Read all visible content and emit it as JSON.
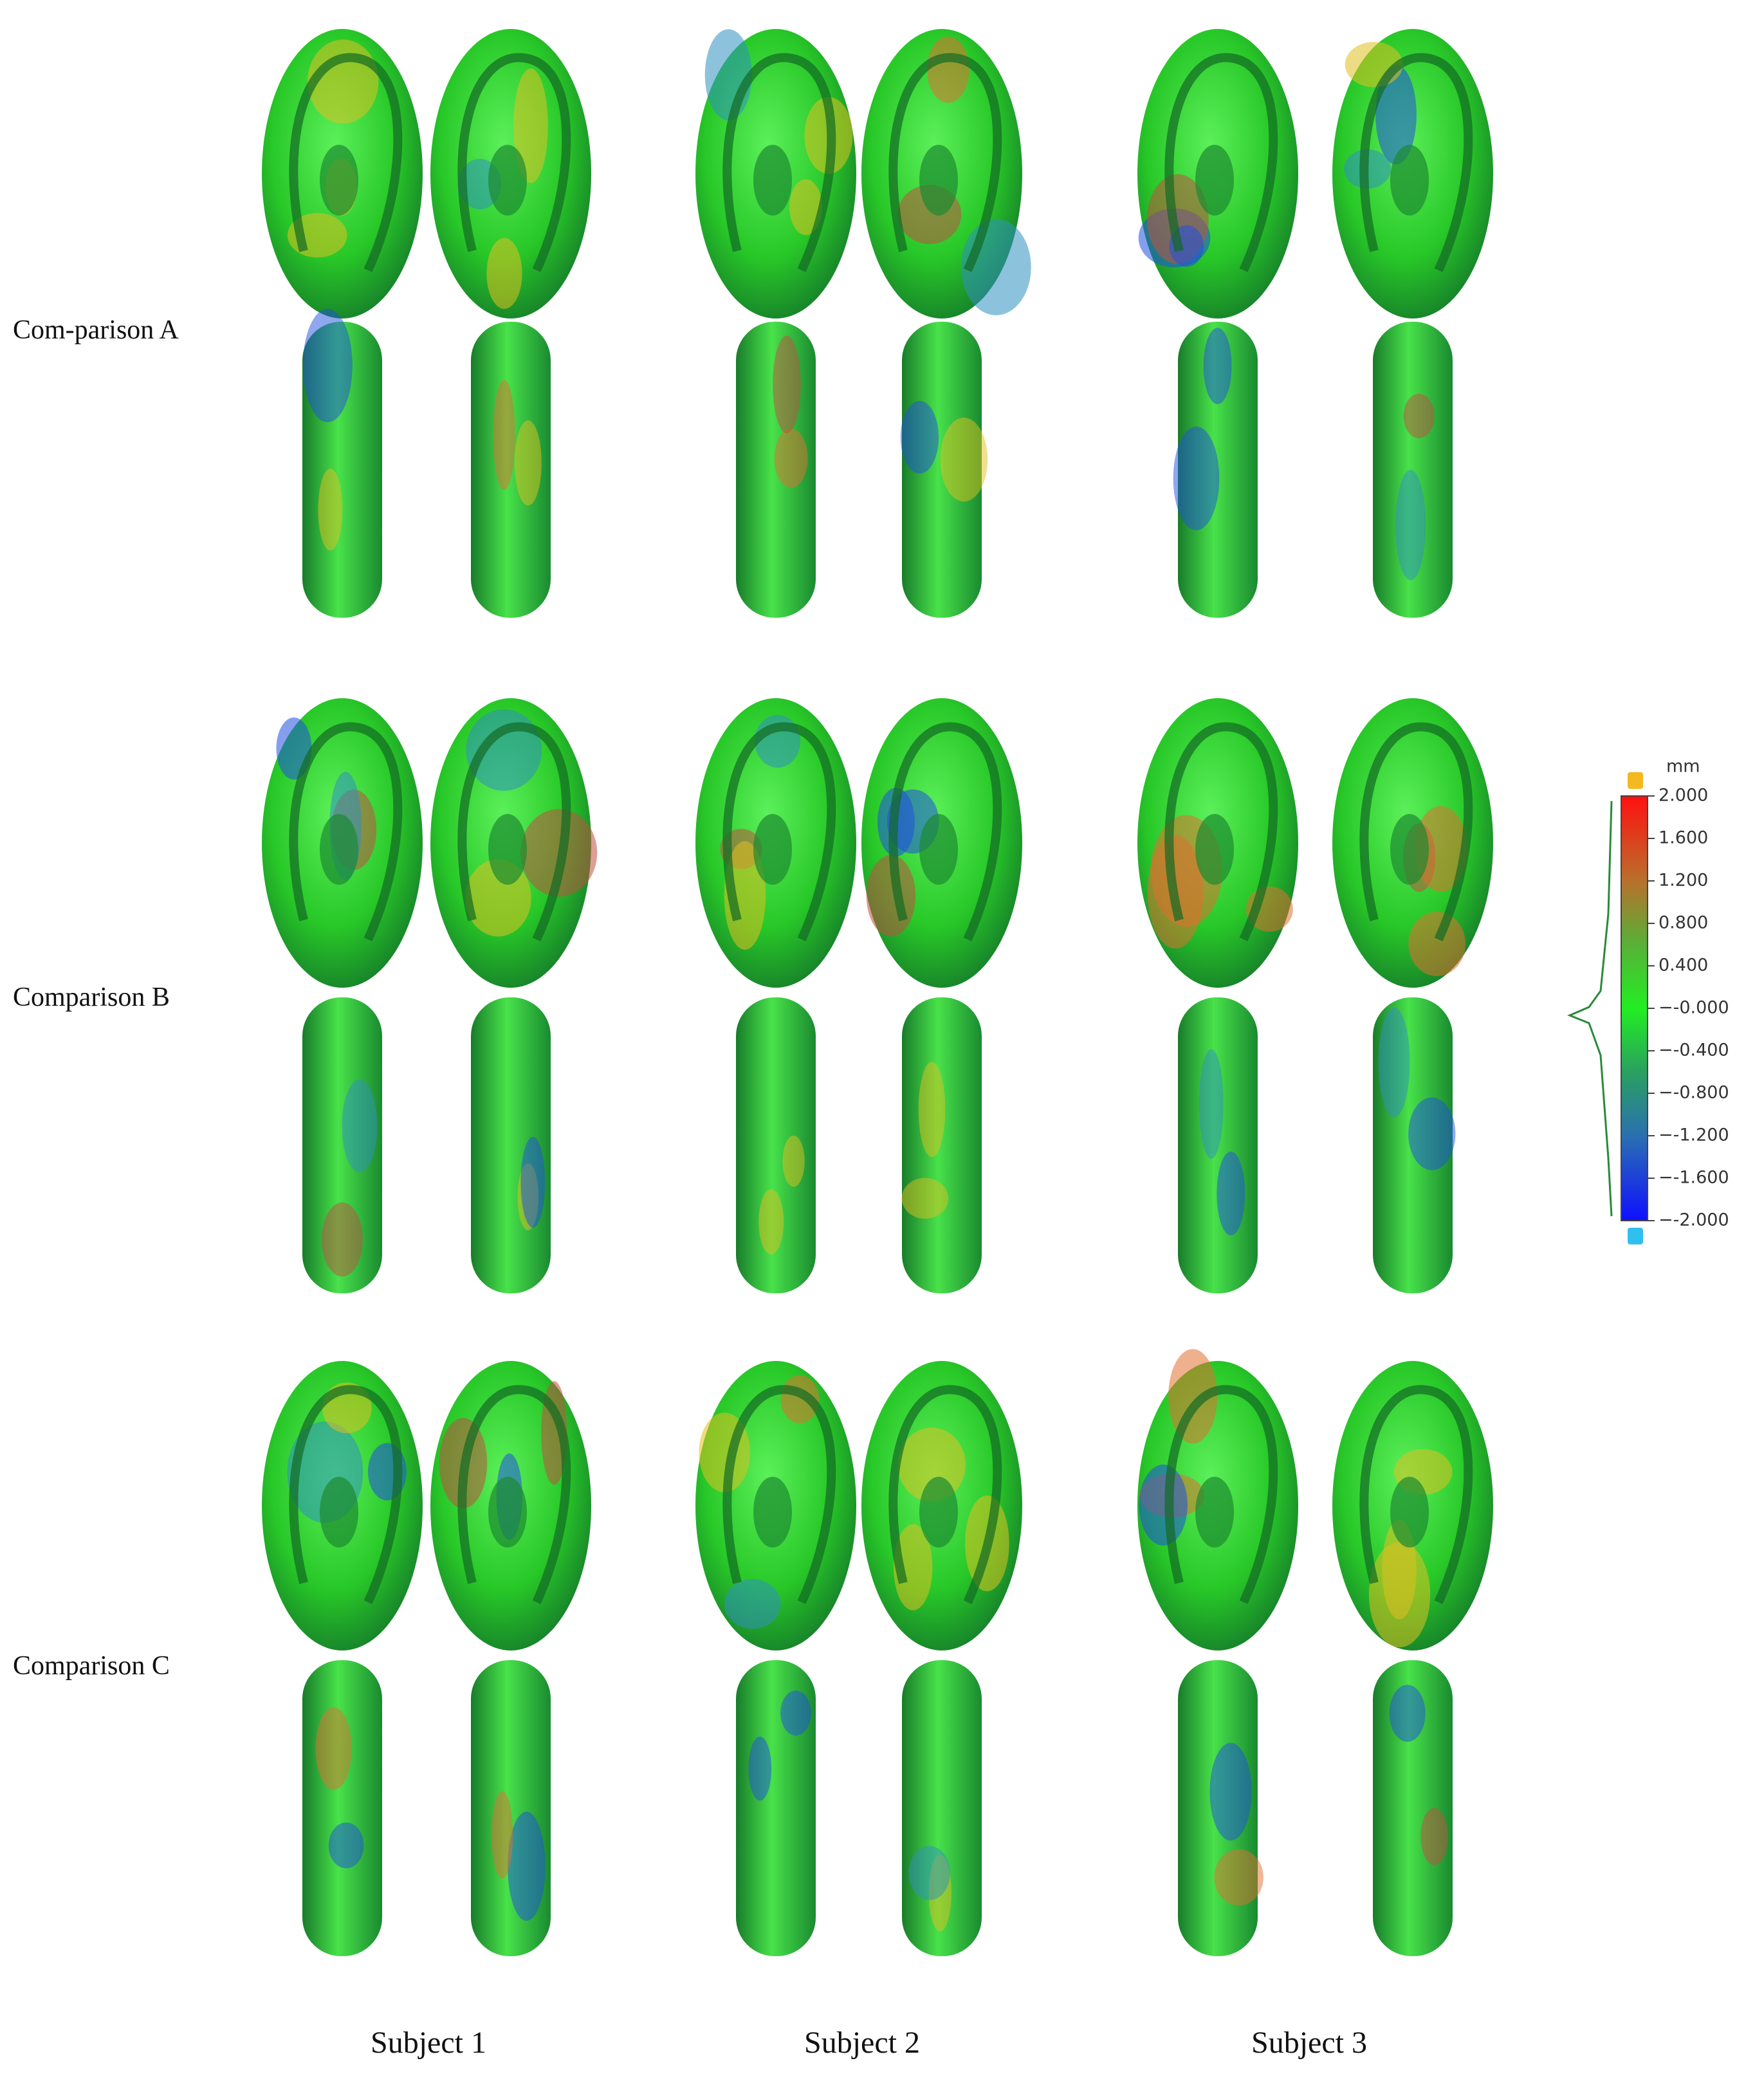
{
  "rows": [
    "Com-parison A",
    "Comparison B",
    "Comparison C"
  ],
  "columns": [
    "Subject 1",
    "Subject 2",
    "Subject 3"
  ],
  "colorbar": {
    "unit": "mm",
    "ticks": [
      "2.000",
      "1.600",
      "1.200",
      "0.800",
      "0.400",
      "−-0.000",
      "−-0.400",
      "−-0.800",
      "−-1.200",
      "−-1.600",
      "−-2.000"
    ]
  }
}
